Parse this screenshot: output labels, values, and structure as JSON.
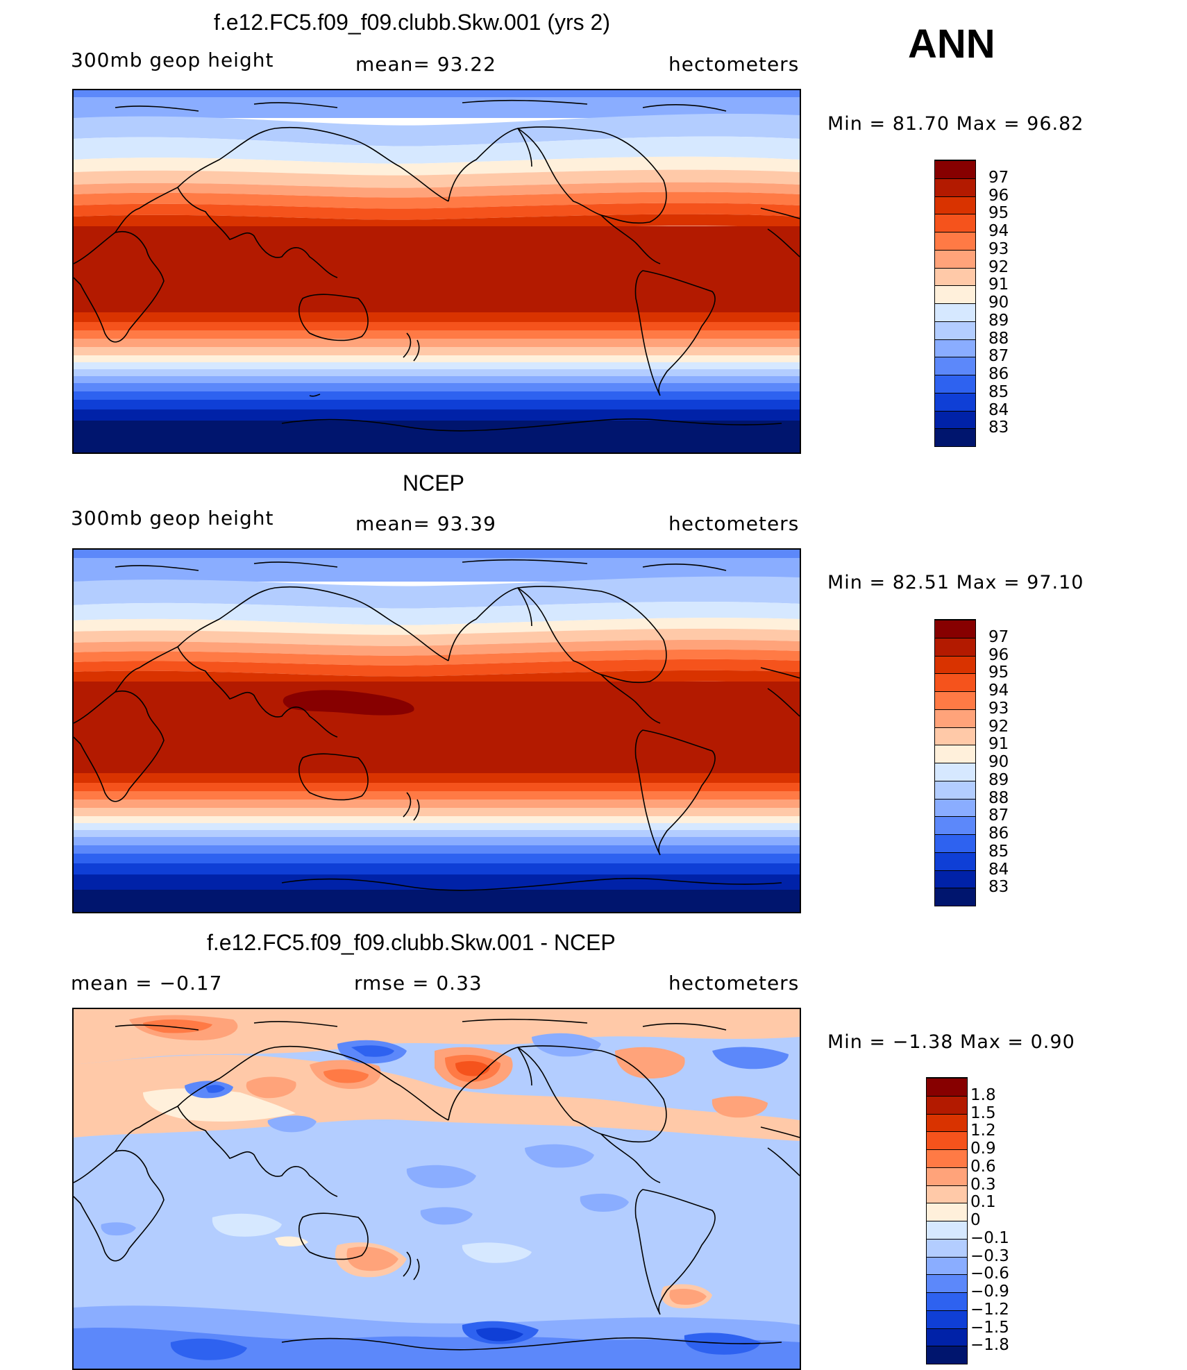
{
  "season": "ANN",
  "panels": [
    {
      "title": "f.e12.FC5.f09_f09.clubb.Skw.001 (yrs 2)",
      "left_label": "300mb geop height",
      "center_label": "mean=  93.22",
      "right_label": "hectometers",
      "minmax": "Min =   81.70  Max =   96.82",
      "colorbar": {
        "labels": [
          "97",
          "96",
          "95",
          "94",
          "93",
          "92",
          "91",
          "90",
          "89",
          "88",
          "87",
          "86",
          "85",
          "84",
          "83"
        ],
        "colors": [
          "#870000",
          "#b31a00",
          "#d93300",
          "#f5531c",
          "#ff7a45",
          "#ffa37a",
          "#ffc9a8",
          "#fff0db",
          "#d6e8ff",
          "#b3cdff",
          "#8aadff",
          "#5c88fa",
          "#2e62f0",
          "#0f3fd6",
          "#0022a8",
          "#00156e"
        ]
      }
    },
    {
      "title": "NCEP",
      "left_label": "300mb geop height",
      "center_label": "mean=  93.39",
      "right_label": "hectometers",
      "minmax": "Min =   82.51  Max =   97.10",
      "colorbar": {
        "labels": [
          "97",
          "96",
          "95",
          "94",
          "93",
          "92",
          "91",
          "90",
          "89",
          "88",
          "87",
          "86",
          "85",
          "84",
          "83"
        ],
        "colors": [
          "#870000",
          "#b31a00",
          "#d93300",
          "#f5531c",
          "#ff7a45",
          "#ffa37a",
          "#ffc9a8",
          "#fff0db",
          "#d6e8ff",
          "#b3cdff",
          "#8aadff",
          "#5c88fa",
          "#2e62f0",
          "#0f3fd6",
          "#0022a8",
          "#00156e"
        ]
      }
    },
    {
      "title": "f.e12.FC5.f09_f09.clubb.Skw.001 - NCEP",
      "left_label": "mean =   −0.17",
      "center_label": "rmse =    0.33",
      "right_label": "hectometers",
      "minmax": "Min =   −1.38  Max =    0.90",
      "colorbar": {
        "labels": [
          "1.8",
          "1.5",
          "1.2",
          "0.9",
          "0.6",
          "0.3",
          "0.1",
          "0",
          "−0.1",
          "−0.3",
          "−0.6",
          "−0.9",
          "−1.2",
          "−1.5",
          "−1.8"
        ],
        "colors": [
          "#870000",
          "#b31a00",
          "#d93300",
          "#f5531c",
          "#ff7a45",
          "#ffa37a",
          "#ffc9a8",
          "#fff0db",
          "#d6e8ff",
          "#b3cdff",
          "#8aadff",
          "#5c88fa",
          "#2e62f0",
          "#0f3fd6",
          "#0022a8",
          "#00156e"
        ]
      }
    }
  ]
}
